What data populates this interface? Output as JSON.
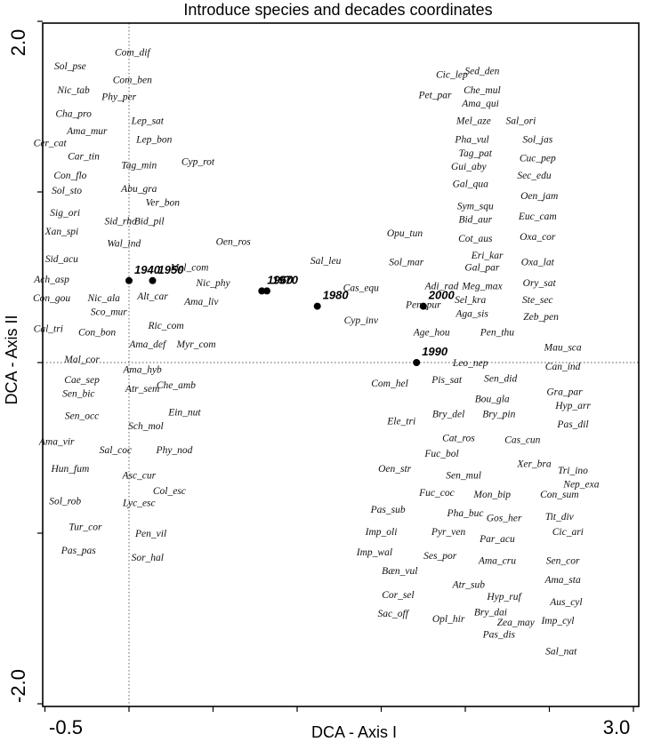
{
  "chart_data": {
    "type": "scatter",
    "title": "Introduce species and decades coordinates",
    "xlabel": "DCA - Axis I",
    "ylabel": "DCA - Axis II",
    "xlim": [
      -0.5,
      3.0
    ],
    "ylim": [
      -2.0,
      2.0
    ],
    "x_tick_labels": [
      "-0.5",
      "3.0"
    ],
    "y_tick_labels": [
      "2.0",
      "-2.0"
    ],
    "zero_lines": true,
    "decades": [
      {
        "label": "1940",
        "x": 0.0,
        "y": 0.48
      },
      {
        "label": "1950",
        "x": 0.14,
        "y": 0.48
      },
      {
        "label": "1960",
        "x": 0.79,
        "y": 0.42
      },
      {
        "label": "1970",
        "x": 0.82,
        "y": 0.42
      },
      {
        "label": "1980",
        "x": 1.12,
        "y": 0.33
      },
      {
        "label": "2000",
        "x": 1.75,
        "y": 0.33
      },
      {
        "label": "1990",
        "x": 1.71,
        "y": 0.0
      }
    ],
    "species": [
      {
        "label": "Com_dif",
        "x": 0.02,
        "y": 1.82
      },
      {
        "label": "Sol_pse",
        "x": -0.35,
        "y": 1.74
      },
      {
        "label": "Com_ben",
        "x": 0.02,
        "y": 1.66
      },
      {
        "label": "Nic_tab",
        "x": -0.33,
        "y": 1.6
      },
      {
        "label": "Phy_per",
        "x": -0.06,
        "y": 1.56
      },
      {
        "label": "Cha_pro",
        "x": -0.33,
        "y": 1.46
      },
      {
        "label": "Lep_sat",
        "x": 0.11,
        "y": 1.42
      },
      {
        "label": "Ama_mur",
        "x": -0.25,
        "y": 1.36
      },
      {
        "label": "Lep_bon",
        "x": 0.15,
        "y": 1.31
      },
      {
        "label": "Cer_cat",
        "x": -0.47,
        "y": 1.29
      },
      {
        "label": "Car_tin",
        "x": -0.27,
        "y": 1.21
      },
      {
        "label": "Tag_min",
        "x": 0.06,
        "y": 1.16
      },
      {
        "label": "Cyp_rot",
        "x": 0.41,
        "y": 1.18
      },
      {
        "label": "Con_flo",
        "x": -0.35,
        "y": 1.1
      },
      {
        "label": "Sol_sto",
        "x": -0.37,
        "y": 1.01
      },
      {
        "label": "Abu_gra",
        "x": 0.06,
        "y": 1.02
      },
      {
        "label": "Ver_bon",
        "x": 0.2,
        "y": 0.94
      },
      {
        "label": "Sig_ori",
        "x": -0.38,
        "y": 0.88
      },
      {
        "label": "Sid_rho",
        "x": -0.05,
        "y": 0.83
      },
      {
        "label": "Bid_pil",
        "x": 0.12,
        "y": 0.83
      },
      {
        "label": "Xan_spi",
        "x": -0.4,
        "y": 0.77
      },
      {
        "label": "Wal_ind",
        "x": -0.03,
        "y": 0.7
      },
      {
        "label": "Oen_ros",
        "x": 0.62,
        "y": 0.71
      },
      {
        "label": "Sid_acu",
        "x": -0.4,
        "y": 0.61
      },
      {
        "label": "Mel_com",
        "x": 0.36,
        "y": 0.56
      },
      {
        "label": "Ach_asp",
        "x": -0.46,
        "y": 0.49
      },
      {
        "label": "Nic_phy",
        "x": 0.5,
        "y": 0.47
      },
      {
        "label": "Nic_ala",
        "x": -0.15,
        "y": 0.38
      },
      {
        "label": "Alt_car",
        "x": 0.14,
        "y": 0.39
      },
      {
        "label": "Con_gou",
        "x": -0.46,
        "y": 0.38
      },
      {
        "label": "Ama_liv",
        "x": 0.43,
        "y": 0.36
      },
      {
        "label": "Sco_mur",
        "x": -0.12,
        "y": 0.3
      },
      {
        "label": "Ric_com",
        "x": 0.22,
        "y": 0.22
      },
      {
        "label": "Cal_tri",
        "x": -0.48,
        "y": 0.2
      },
      {
        "label": "Con_bon",
        "x": -0.19,
        "y": 0.18
      },
      {
        "label": "Ama_def",
        "x": 0.11,
        "y": 0.11
      },
      {
        "label": "Myr_com",
        "x": 0.4,
        "y": 0.11
      },
      {
        "label": "Mal_cor",
        "x": -0.28,
        "y": 0.02
      },
      {
        "label": "Ama_hyb",
        "x": 0.08,
        "y": -0.04
      },
      {
        "label": "Cae_sep",
        "x": -0.28,
        "y": -0.1
      },
      {
        "label": "Atr_sem",
        "x": 0.08,
        "y": -0.15
      },
      {
        "label": "Che_amb",
        "x": 0.28,
        "y": -0.13
      },
      {
        "label": "Sen_bic",
        "x": -0.3,
        "y": -0.18
      },
      {
        "label": "Ein_nut",
        "x": 0.33,
        "y": -0.29
      },
      {
        "label": "Sen_occ",
        "x": -0.28,
        "y": -0.31
      },
      {
        "label": "Sch_mol",
        "x": 0.1,
        "y": -0.37
      },
      {
        "label": "Ama_vir",
        "x": -0.43,
        "y": -0.46
      },
      {
        "label": "Sal_coc",
        "x": -0.08,
        "y": -0.51
      },
      {
        "label": "Phy_nod",
        "x": 0.27,
        "y": -0.51
      },
      {
        "label": "Hun_fum",
        "x": -0.35,
        "y": -0.62
      },
      {
        "label": "Asc_cur",
        "x": 0.06,
        "y": -0.66
      },
      {
        "label": "Col_esc",
        "x": 0.24,
        "y": -0.75
      },
      {
        "label": "Lyc_esc",
        "x": 0.06,
        "y": -0.82
      },
      {
        "label": "Sol_rob",
        "x": -0.38,
        "y": -0.81
      },
      {
        "label": "Tur_cor",
        "x": -0.26,
        "y": -0.96
      },
      {
        "label": "Pen_vil",
        "x": 0.13,
        "y": -1.0
      },
      {
        "label": "Pas_pas",
        "x": -0.3,
        "y": -1.1
      },
      {
        "label": "Sor_hal",
        "x": 0.11,
        "y": -1.14
      },
      {
        "label": "Sed_den",
        "x": 2.1,
        "y": 1.71
      },
      {
        "label": "Cic_lep",
        "x": 1.92,
        "y": 1.69
      },
      {
        "label": "Che_mul",
        "x": 2.1,
        "y": 1.6
      },
      {
        "label": "Pet_par",
        "x": 1.82,
        "y": 1.57
      },
      {
        "label": "Ama_qui",
        "x": 2.09,
        "y": 1.52
      },
      {
        "label": "Mel_aze",
        "x": 2.05,
        "y": 1.42
      },
      {
        "label": "Sal_ori",
        "x": 2.33,
        "y": 1.42
      },
      {
        "label": "Pha_vul",
        "x": 2.04,
        "y": 1.31
      },
      {
        "label": "Sol_jas",
        "x": 2.43,
        "y": 1.31
      },
      {
        "label": "Tag_pat",
        "x": 2.06,
        "y": 1.23
      },
      {
        "label": "Cuc_pep",
        "x": 2.43,
        "y": 1.2
      },
      {
        "label": "Gui_aby",
        "x": 2.02,
        "y": 1.15
      },
      {
        "label": "Sec_edu",
        "x": 2.41,
        "y": 1.1
      },
      {
        "label": "Gal_qua",
        "x": 2.03,
        "y": 1.05
      },
      {
        "label": "Oen_jam",
        "x": 2.44,
        "y": 0.98
      },
      {
        "label": "Sym_squ",
        "x": 2.06,
        "y": 0.92
      },
      {
        "label": "Euc_cam",
        "x": 2.43,
        "y": 0.86
      },
      {
        "label": "Bid_aur",
        "x": 2.06,
        "y": 0.84
      },
      {
        "label": "Opu_tun",
        "x": 1.64,
        "y": 0.76
      },
      {
        "label": "Cot_aus",
        "x": 2.06,
        "y": 0.73
      },
      {
        "label": "Oxa_cor",
        "x": 2.43,
        "y": 0.74
      },
      {
        "label": "Eri_kar",
        "x": 2.13,
        "y": 0.63
      },
      {
        "label": "Sal_leu",
        "x": 1.17,
        "y": 0.6
      },
      {
        "label": "Sol_mar",
        "x": 1.65,
        "y": 0.59
      },
      {
        "label": "Gal_par",
        "x": 2.1,
        "y": 0.56
      },
      {
        "label": "Oxa_lat",
        "x": 2.43,
        "y": 0.59
      },
      {
        "label": "Adi_rad",
        "x": 1.86,
        "y": 0.45
      },
      {
        "label": "Meg_max",
        "x": 2.1,
        "y": 0.45
      },
      {
        "label": "Ory_sat",
        "x": 2.44,
        "y": 0.47
      },
      {
        "label": "Cas_equ",
        "x": 1.38,
        "y": 0.44
      },
      {
        "label": "Sel_kra",
        "x": 2.03,
        "y": 0.37
      },
      {
        "label": "Ste_sec",
        "x": 2.43,
        "y": 0.37
      },
      {
        "label": "Pen_pur",
        "x": 1.75,
        "y": 0.34
      },
      {
        "label": "Aga_sis",
        "x": 2.04,
        "y": 0.29
      },
      {
        "label": "Cyp_inv",
        "x": 1.38,
        "y": 0.25
      },
      {
        "label": "Zeb_pen",
        "x": 2.45,
        "y": 0.27
      },
      {
        "label": "Age_hou",
        "x": 1.8,
        "y": 0.18
      },
      {
        "label": "Pen_thu",
        "x": 2.19,
        "y": 0.18
      },
      {
        "label": "Mau_sca",
        "x": 2.58,
        "y": 0.09
      },
      {
        "label": "Leo_nep",
        "x": 2.03,
        "y": 0.0
      },
      {
        "label": "Can_ind",
        "x": 2.58,
        "y": -0.02
      },
      {
        "label": "Pis_sat",
        "x": 1.89,
        "y": -0.1
      },
      {
        "label": "Sen_did",
        "x": 2.21,
        "y": -0.09
      },
      {
        "label": "Com_hel",
        "x": 1.55,
        "y": -0.12
      },
      {
        "label": "Gra_par",
        "x": 2.59,
        "y": -0.17
      },
      {
        "label": "Bou_gla",
        "x": 2.16,
        "y": -0.21
      },
      {
        "label": "Hyp_arr",
        "x": 2.64,
        "y": -0.25
      },
      {
        "label": "Bry_del",
        "x": 1.9,
        "y": -0.3
      },
      {
        "label": "Ele_tri",
        "x": 1.62,
        "y": -0.34
      },
      {
        "label": "Bry_pin",
        "x": 2.2,
        "y": -0.3
      },
      {
        "label": "Pas_dil",
        "x": 2.64,
        "y": -0.36
      },
      {
        "label": "Cat_ros",
        "x": 1.96,
        "y": -0.44
      },
      {
        "label": "Cas_cun",
        "x": 2.34,
        "y": -0.45
      },
      {
        "label": "Fuc_bol",
        "x": 1.86,
        "y": -0.53
      },
      {
        "label": "Xer_bra",
        "x": 2.41,
        "y": -0.59
      },
      {
        "label": "Oen_str",
        "x": 1.58,
        "y": -0.62
      },
      {
        "label": "Tri_ino",
        "x": 2.64,
        "y": -0.63
      },
      {
        "label": "Sen_mul",
        "x": 1.99,
        "y": -0.66
      },
      {
        "label": "Nep_exa",
        "x": 2.69,
        "y": -0.71
      },
      {
        "label": "Fuc_coc",
        "x": 1.83,
        "y": -0.76
      },
      {
        "label": "Mon_bip",
        "x": 2.16,
        "y": -0.77
      },
      {
        "label": "Con_sum",
        "x": 2.56,
        "y": -0.77
      },
      {
        "label": "Pas_sub",
        "x": 1.54,
        "y": -0.86
      },
      {
        "label": "Pha_buc",
        "x": 2.0,
        "y": -0.88
      },
      {
        "label": "Gos_her",
        "x": 2.23,
        "y": -0.91
      },
      {
        "label": "Tit_div",
        "x": 2.56,
        "y": -0.9
      },
      {
        "label": "Imp_oli",
        "x": 1.5,
        "y": -0.99
      },
      {
        "label": "Pyr_ven",
        "x": 1.9,
        "y": -0.99
      },
      {
        "label": "Cic_ari",
        "x": 2.61,
        "y": -0.99
      },
      {
        "label": "Par_acu",
        "x": 2.19,
        "y": -1.03
      },
      {
        "label": "Imp_wal",
        "x": 1.46,
        "y": -1.11
      },
      {
        "label": "Ses_por",
        "x": 1.85,
        "y": -1.13
      },
      {
        "label": "Bæn_vul",
        "x": 1.61,
        "y": -1.22
      },
      {
        "label": "Ama_cru",
        "x": 2.19,
        "y": -1.16
      },
      {
        "label": "Sen_cor",
        "x": 2.58,
        "y": -1.16
      },
      {
        "label": "Atr_sub",
        "x": 2.02,
        "y": -1.3
      },
      {
        "label": "Ama_sta",
        "x": 2.58,
        "y": -1.27
      },
      {
        "label": "Cor_sel",
        "x": 1.6,
        "y": -1.36
      },
      {
        "label": "Hyp_ruf",
        "x": 2.23,
        "y": -1.37
      },
      {
        "label": "Aus_cyl",
        "x": 2.6,
        "y": -1.4
      },
      {
        "label": "Sac_off",
        "x": 1.57,
        "y": -1.47
      },
      {
        "label": "Bry_dai",
        "x": 2.15,
        "y": -1.46
      },
      {
        "label": "Opl_hir",
        "x": 1.9,
        "y": -1.5
      },
      {
        "label": "Zea_may",
        "x": 2.3,
        "y": -1.52
      },
      {
        "label": "Imp_cyl",
        "x": 2.55,
        "y": -1.51
      },
      {
        "label": "Pas_dis",
        "x": 2.2,
        "y": -1.59
      },
      {
        "label": "Sal_nat",
        "x": 2.57,
        "y": -1.69
      }
    ]
  }
}
